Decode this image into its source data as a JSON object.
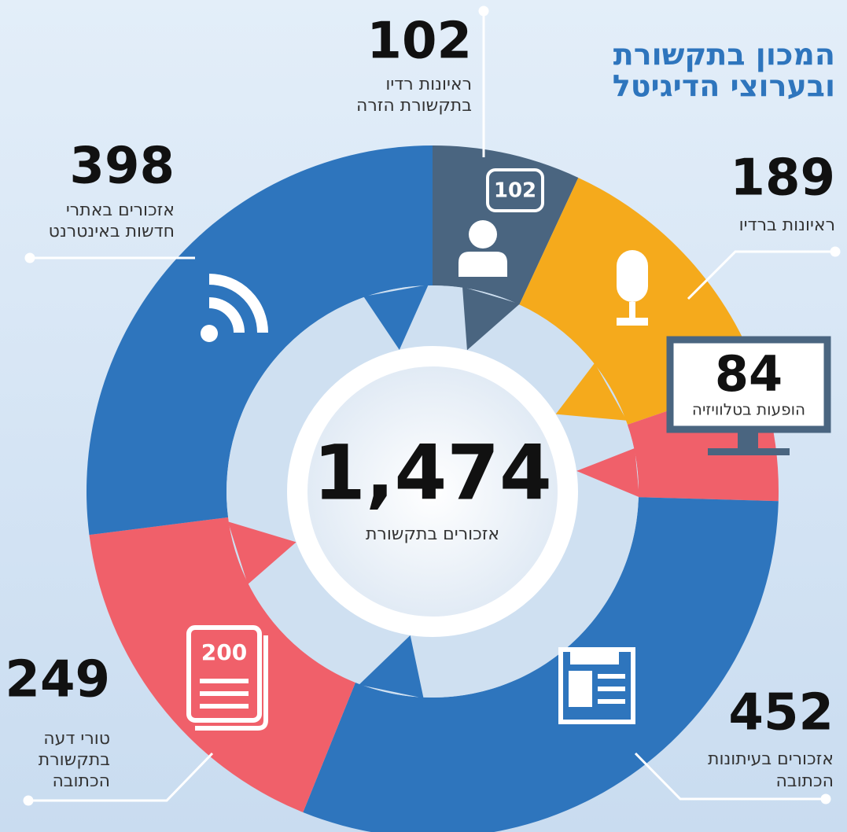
{
  "chart_data": {
    "type": "donut",
    "title": [
      "המכון בתקשורת",
      "ובערוצי הדיגיטל"
    ],
    "categories": [
      [
        "ראיונות רדיו",
        "בתקשורת הזרה"
      ],
      [
        "ראיונות ברדיו"
      ],
      [
        "הופעות בטלוויזיה"
      ],
      [
        "אזכורים בעיתונות",
        "הכתובה"
      ],
      [
        "טורי דעה",
        "בתקשורת",
        "הכתובה"
      ],
      [
        "אזכורים באתרי",
        "חדשות באינטרנט"
      ]
    ],
    "values": [
      102,
      189,
      84,
      452,
      249,
      398
    ],
    "colors": [
      "#4a6580",
      "#f5aa1c",
      "#f0606a",
      "#2e75bd",
      "#f0606a",
      "#2e75bd"
    ],
    "total": 1474,
    "total_value_label": "1,474",
    "total_label": "אזכורים בתקשורת",
    "icon_text": "200"
  }
}
